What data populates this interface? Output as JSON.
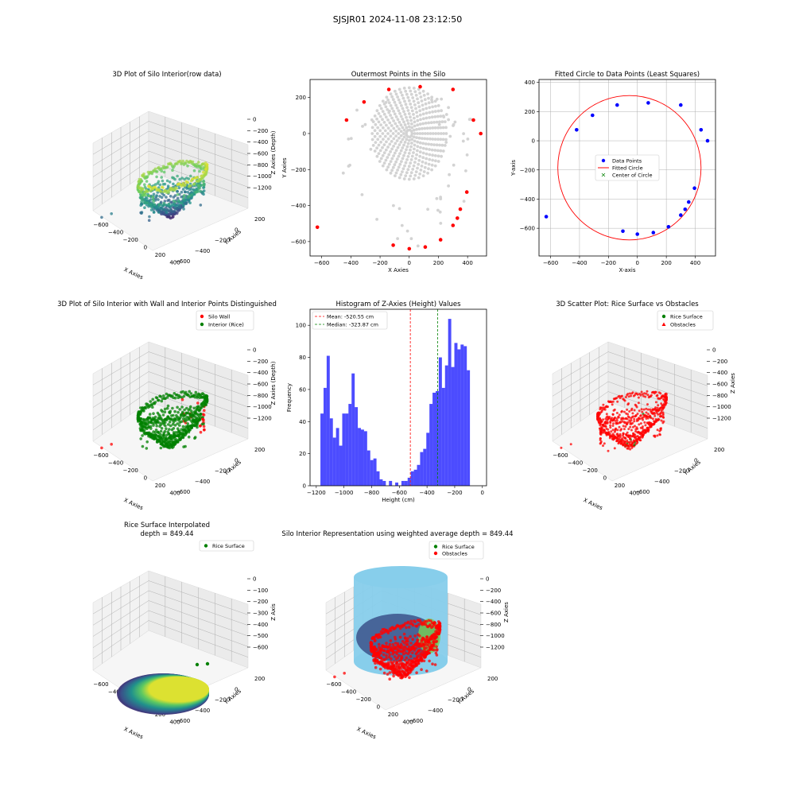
{
  "suptitle": "SJSJR01 2024-11-08 23:12:50",
  "colors": {
    "wall_red": "#ff0000",
    "rice_green": "#008000",
    "hist_blue": "#0000ff",
    "gray_points": "#d3d3d3",
    "circle_red": "#ff0000",
    "data_blue": "#0000ff",
    "sky": "#87ceeb",
    "viridis_low": "#440154",
    "viridis_mid": "#21918c",
    "viridis_high": "#fde725"
  },
  "panels": {
    "p1": {
      "title": "3D Plot of Silo Interior(row data)",
      "xlabel": "X Axies",
      "ylabel": "Y Axies",
      "zlabel": "Z Axies (Depth)",
      "xticks": [
        "−600",
        "−400",
        "−200",
        "0",
        "200",
        "400"
      ],
      "yticks": [
        "200",
        "0",
        "−200",
        "−400",
        "−600"
      ],
      "zticks": [
        "0",
        "−200",
        "−400",
        "−600",
        "−800",
        "−1000",
        "−1200"
      ]
    },
    "p2": {
      "title": "Outermost Points in the Silo",
      "xlabel": "X Axies",
      "ylabel": "Y Axies",
      "xticks": [
        "−600",
        "−400",
        "−200",
        "0",
        "200",
        "400"
      ],
      "yticks": [
        "200",
        "0",
        "−200",
        "−400",
        "−600"
      ]
    },
    "p3": {
      "title": "Fitted Circle to Data Points (Least Squares)",
      "xlabel": "X-axis",
      "ylabel": "Y-axis",
      "xticks": [
        "−600",
        "−400",
        "−200",
        "0",
        "200",
        "400"
      ],
      "yticks": [
        "400",
        "200",
        "0",
        "−200",
        "−400",
        "−600"
      ],
      "legend": [
        "Data Points",
        "Fitted Circle",
        "Center of Circle"
      ]
    },
    "p4": {
      "title": "3D Plot of Silo Interior with Wall and Interior Points Distinguished",
      "xlabel": "X Axies",
      "ylabel": "Y Axies",
      "zlabel": "Z Axies (Depth)",
      "xticks": [
        "−600",
        "−400",
        "−200",
        "0",
        "200",
        "400"
      ],
      "yticks": [
        "200",
        "0",
        "−200",
        "−400",
        "−600"
      ],
      "zticks": [
        "0",
        "−200",
        "−400",
        "−600",
        "−800",
        "−1000",
        "−1200"
      ],
      "legend": [
        "Silo Wall",
        "Interior (Rice)"
      ]
    },
    "p5": {
      "title": "Histogram of Z-Axies (Height) Values",
      "xlabel": "Height (cm)",
      "ylabel": "Frequency",
      "xticks": [
        "−1200",
        "−1000",
        "−800",
        "−600",
        "−400",
        "−200",
        "0"
      ],
      "yticks": [
        "0",
        "20",
        "40",
        "60",
        "80",
        "100"
      ],
      "legend": [
        "Mean: -520.55 cm",
        "Median: -323.87 cm"
      ]
    },
    "p6": {
      "title": "3D Scatter Plot: Rice Surface vs Obstacles",
      "xlabel": "X Axies",
      "ylabel": "Y Axies",
      "zlabel": "Z Axies",
      "xticks": [
        "−600",
        "−400",
        "−200",
        "0",
        "200",
        "400"
      ],
      "yticks": [
        "200",
        "0",
        "−200",
        "−400",
        "−600"
      ],
      "zticks": [
        "0",
        "−200",
        "−400",
        "−600",
        "−800",
        "−1000",
        "−1200"
      ],
      "legend": [
        "Rice Surface",
        "Obstacles"
      ]
    },
    "p7": {
      "title_line1": "Rice Surface Interpolated",
      "title_line2": "depth = 849.44",
      "xlabel": "X Axies",
      "ylabel": "Y Axies",
      "zlabel": "Z Axis",
      "xticks": [
        "−600",
        "−400",
        "−200",
        "0",
        "200",
        "400"
      ],
      "yticks": [
        "200",
        "0",
        "−200",
        "−400",
        "−600"
      ],
      "zticks": [
        "0",
        "−100",
        "−200",
        "−300",
        "−400",
        "−500",
        "−600"
      ],
      "legend": [
        "Rice Surface"
      ]
    },
    "p8": {
      "title": "Silo Interior Representation using weighted average depth = 849.44",
      "xlabel": "X Axies",
      "ylabel": "Y Axies",
      "zlabel": "Z Axies",
      "xticks": [
        "−600",
        "−400",
        "−200",
        "0",
        "200",
        "400"
      ],
      "yticks": [
        "200",
        "0",
        "−200",
        "−400",
        "−600"
      ],
      "zticks": [
        "0",
        "−200",
        "−400",
        "−600",
        "−800",
        "−1000",
        "−1200"
      ],
      "legend": [
        "Rice Surface",
        "Obstacles"
      ]
    }
  },
  "chart_data": [
    {
      "type": "scatter",
      "title": "Outermost Points in the Silo",
      "xlabel": "X Axies",
      "ylabel": "Y Axies",
      "xlim": [
        -680,
        530
      ],
      "ylim": [
        -680,
        300
      ],
      "series": [
        {
          "name": "",
          "color": "#ff0000",
          "points": [
            [
              -630,
              -520
            ],
            [
              -430,
              75
            ],
            [
              -310,
              175
            ],
            [
              -140,
              245
            ],
            [
              75,
              260
            ],
            [
              300,
              245
            ],
            [
              440,
              75
            ],
            [
              490,
              0
            ],
            [
              395,
              -325
            ],
            [
              350,
              -420
            ],
            [
              330,
              -470
            ],
            [
              300,
              -510
            ],
            [
              215,
              -590
            ],
            [
              110,
              -630
            ],
            [
              0,
              -640
            ],
            [
              -110,
              -620
            ]
          ]
        }
      ]
    },
    {
      "type": "scatter",
      "title": "Fitted Circle to Data Points (Least Squares)",
      "xlabel": "X-axis",
      "ylabel": "Y-axis",
      "xlim": [
        -680,
        540
      ],
      "ylim": [
        -790,
        420
      ],
      "series": [
        {
          "name": "Data Points",
          "color": "#0000ff",
          "points": [
            [
              -630,
              -520
            ],
            [
              -420,
              75
            ],
            [
              -310,
              175
            ],
            [
              -140,
              245
            ],
            [
              75,
              260
            ],
            [
              300,
              245
            ],
            [
              440,
              75
            ],
            [
              485,
              0
            ],
            [
              395,
              -325
            ],
            [
              355,
              -420
            ],
            [
              330,
              -470
            ],
            [
              300,
              -510
            ],
            [
              215,
              -590
            ],
            [
              110,
              -630
            ],
            [
              0,
              -640
            ],
            [
              -100,
              -620
            ]
          ]
        }
      ],
      "fitted_circle": {
        "cx": -55,
        "cy": -185,
        "r": 495
      }
    },
    {
      "type": "bar",
      "title": "Histogram of Z-Axies (Height) Values",
      "xlabel": "Height (cm)",
      "ylabel": "Frequency",
      "xlim": [
        -1245,
        30
      ],
      "ylim": [
        0,
        110
      ],
      "bin_start": -1170,
      "bin_width": 22.5,
      "values": [
        45,
        61,
        81,
        42,
        30,
        36,
        25,
        45,
        45,
        51,
        70,
        49,
        36,
        35,
        34,
        22,
        16,
        17,
        9,
        4,
        3,
        0,
        3,
        0,
        2,
        0,
        3,
        3,
        5,
        9,
        10,
        13,
        21,
        23,
        33,
        51,
        58,
        59,
        80,
        61,
        75,
        104,
        74,
        89,
        85,
        88,
        87,
        72
      ],
      "lines": [
        {
          "name": "Mean: -520.55 cm",
          "x": -520.55,
          "color": "#ff0000"
        },
        {
          "name": "Median: -323.87 cm",
          "x": -323.87,
          "color": "#008000"
        }
      ]
    }
  ]
}
